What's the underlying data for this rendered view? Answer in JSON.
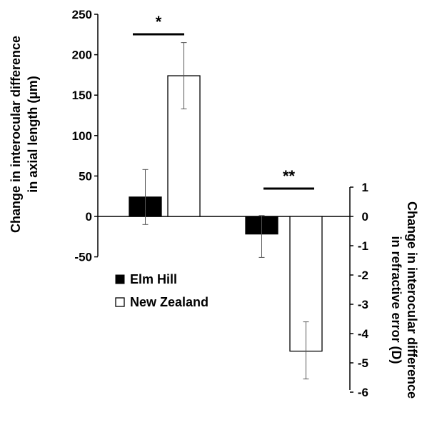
{
  "chart_data": {
    "type": "bar",
    "legend": {
      "position": "left-middle",
      "items": [
        {
          "name": "Elm Hill",
          "fill": "#000000"
        },
        {
          "name": "New Zealand",
          "fill": "#ffffff"
        }
      ]
    },
    "left_axis": {
      "label_line1": "Change in interocular difference",
      "label_line2": "in axial length (µm)",
      "ylim": [
        -50,
        250
      ],
      "ticks": [
        250,
        200,
        150,
        100,
        50,
        0,
        -50
      ]
    },
    "right_axis": {
      "label_line1": "Change in interocular difference",
      "label_line2": "in refractive error (D)",
      "ylim": [
        -6,
        1
      ],
      "ticks": [
        1,
        0,
        -1,
        -2,
        -3,
        -4,
        -5,
        -6
      ]
    },
    "groups": [
      {
        "measure": "axial length",
        "axis": "left",
        "significance": "*",
        "bars": [
          {
            "series": "Elm Hill",
            "value": 24,
            "error_low": -10,
            "error_high": 58
          },
          {
            "series": "New Zealand",
            "value": 174,
            "error_low": 133,
            "error_high": 215
          }
        ]
      },
      {
        "measure": "refractive error",
        "axis": "right",
        "significance": "**",
        "bars": [
          {
            "series": "Elm Hill",
            "value": -0.6,
            "error_low": -1.4,
            "error_high": 0.03
          },
          {
            "series": "New Zealand",
            "value": -4.6,
            "error_low": -5.55,
            "error_high": -3.6
          }
        ]
      }
    ],
    "grid": false
  }
}
